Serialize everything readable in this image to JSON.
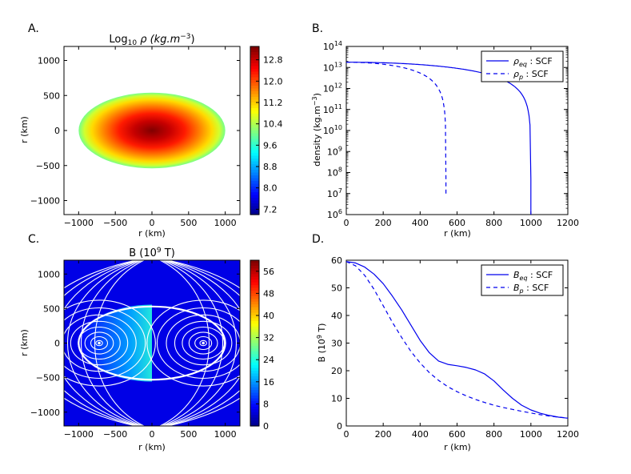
{
  "chart_data": [
    {
      "panel_label": "A.",
      "type": "heatmap",
      "title_main": "Log",
      "title_sub": "10",
      "title_rest": " ρ (kg.m",
      "title_sup": "−3",
      "title_end": ")",
      "xlabel": "r (km)",
      "ylabel": "r (km)",
      "xlim": [
        -1200,
        1200
      ],
      "ylim": [
        -1200,
        1200
      ],
      "xticks": [
        "−1000",
        "−500",
        "0",
        "500",
        "1000"
      ],
      "yticks": [
        "1000",
        "500",
        "0",
        "−500",
        "−1000"
      ],
      "ellipse": {
        "a": 1000,
        "b": 540,
        "center_value": 13.3,
        "edge_value": 9.7
      },
      "colorbar": {
        "min": 7.0,
        "max": 13.3,
        "ticks": [
          "12.8",
          "12.0",
          "11.2",
          "10.4",
          "9.6",
          "8.8",
          "8.0",
          "7.2"
        ],
        "tick_values": [
          12.8,
          12.0,
          11.2,
          10.4,
          9.6,
          8.8,
          8.0,
          7.2
        ]
      }
    },
    {
      "panel_label": "B.",
      "type": "line",
      "xlabel": "r (km)",
      "ylabel": "density (kg.m",
      "ylabel_sup": "−3",
      "ylabel_end": ")",
      "xlim": [
        0,
        1200
      ],
      "ylim_log10": [
        6,
        14
      ],
      "yscale": "log",
      "xticks": [
        "0",
        "200",
        "400",
        "600",
        "800",
        "1000",
        "1200"
      ],
      "yticks_exp": [
        "14",
        "13",
        "12",
        "11",
        "10",
        "9",
        "8",
        "7",
        "6"
      ],
      "ytick_base": "10",
      "legend": [
        {
          "sym": "ρ",
          "sub": "eq",
          "text": " : SCF",
          "style": "solid"
        },
        {
          "sym": "ρ",
          "sub": "p",
          "text": " : SCF",
          "style": "dashed"
        }
      ],
      "series": [
        {
          "name": "rho_eq",
          "style": "solid",
          "r_max": 1000,
          "log_center": 13.25,
          "end_log": 6
        },
        {
          "name": "rho_p",
          "style": "dashed",
          "r_max": 540,
          "log_center": 13.25,
          "end_log": 7
        }
      ]
    },
    {
      "panel_label": "C.",
      "type": "heatmap",
      "title_main": "B (10",
      "title_sup": "9",
      "title_end": "  T)",
      "xlabel": "r (km)",
      "ylabel": "r (km)",
      "xlim": [
        -1200,
        1200
      ],
      "ylim": [
        -1200,
        1200
      ],
      "xticks": [
        "−1000",
        "−500",
        "0",
        "500",
        "1000"
      ],
      "yticks": [
        "1000",
        "500",
        "0",
        "−500",
        "−1000"
      ],
      "field_loop_centers": [
        -720,
        700
      ],
      "colorbar": {
        "min": 0,
        "max": 60,
        "ticks": [
          "56",
          "48",
          "40",
          "32",
          "24",
          "16",
          "8",
          "0"
        ],
        "tick_values": [
          56,
          48,
          40,
          32,
          24,
          16,
          8,
          0
        ]
      }
    },
    {
      "panel_label": "D.",
      "type": "line",
      "xlabel": "r (km)",
      "ylabel": "B (10",
      "ylabel_sup": "9",
      "ylabel_end": "  T)",
      "xlim": [
        0,
        1200
      ],
      "ylim": [
        0,
        60
      ],
      "xticks": [
        "0",
        "200",
        "400",
        "600",
        "800",
        "1000",
        "1200"
      ],
      "yticks": [
        "60",
        "50",
        "40",
        "30",
        "20",
        "10",
        "0"
      ],
      "legend": [
        {
          "sym": "B",
          "sub": "eq",
          "text": " : SCF",
          "style": "solid"
        },
        {
          "sym": "B",
          "sub": "p",
          "text": " : SCF",
          "style": "dashed"
        }
      ],
      "series": [
        {
          "name": "B_eq",
          "style": "solid",
          "x": [
            0,
            50,
            100,
            150,
            200,
            250,
            300,
            350,
            400,
            450,
            500,
            550,
            600,
            650,
            700,
            750,
            800,
            850,
            900,
            950,
            1000,
            1050,
            1100,
            1150,
            1200
          ],
          "y": [
            59.5,
            59,
            57.5,
            55,
            51.5,
            47,
            42,
            36.5,
            31,
            26.5,
            23.5,
            22.3,
            21.8,
            21.2,
            20.3,
            18.8,
            16.3,
            13,
            10,
            7.5,
            5.8,
            4.6,
            3.8,
            3.2,
            2.8
          ]
        },
        {
          "name": "B_p",
          "style": "dashed",
          "x": [
            0,
            50,
            100,
            150,
            200,
            250,
            300,
            350,
            400,
            450,
            500,
            550,
            600,
            650,
            700,
            750,
            800,
            850,
            900,
            950,
            1000,
            1050,
            1100,
            1150,
            1200
          ],
          "y": [
            59.5,
            58,
            54.5,
            49.5,
            43.5,
            37.5,
            32,
            27,
            22.8,
            19.3,
            16.5,
            14.2,
            12.4,
            10.9,
            9.6,
            8.5,
            7.5,
            6.7,
            6,
            5.3,
            4.7,
            4.1,
            3.6,
            3.2,
            2.9
          ]
        }
      ]
    }
  ]
}
